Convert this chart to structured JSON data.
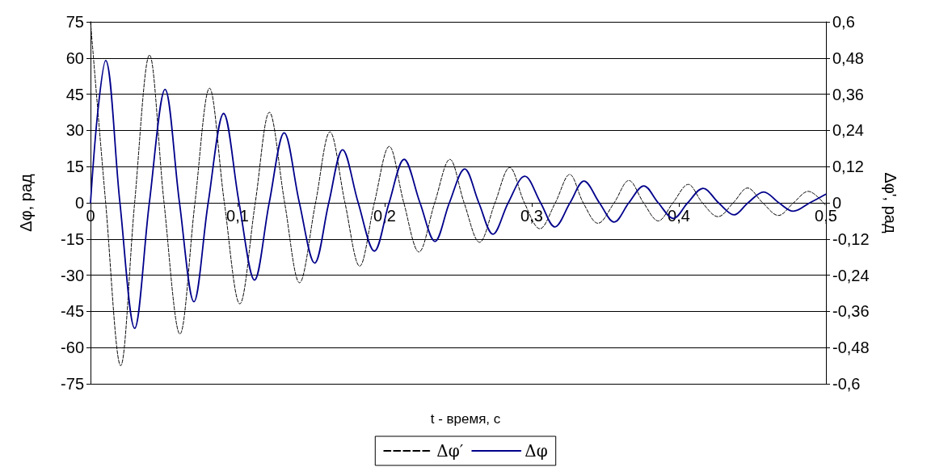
{
  "chart_data": {
    "type": "line",
    "xlabel": "t - время, с",
    "ylabel": "Δφ, рад",
    "y2label": "Δφ', рад",
    "xlim": [
      0,
      0.5
    ],
    "xticks": [
      0,
      {
        "value": 0.1,
        "label": "0,1"
      },
      {
        "value": 0.2,
        "label": "0,2"
      },
      {
        "value": 0.3,
        "label": "0,3"
      },
      {
        "value": 0.4,
        "label": "0,4"
      },
      {
        "value": 0.5,
        "label": "0,5"
      }
    ],
    "ylim": [
      -75,
      75
    ],
    "yticks": [
      -75,
      -60,
      -45,
      -30,
      -15,
      0,
      15,
      30,
      45,
      60,
      75
    ],
    "y2lim": [
      -0.6,
      0.6
    ],
    "y2ticks": [
      {
        "value": -0.6,
        "label": "-0,6"
      },
      {
        "value": -0.48,
        "label": "-0,48"
      },
      {
        "value": -0.36,
        "label": "-0,36"
      },
      {
        "value": -0.24,
        "label": "-0,24"
      },
      {
        "value": -0.12,
        "label": "-0,12"
      },
      0,
      {
        "value": 0.12,
        "label": "0,12"
      },
      {
        "value": 0.24,
        "label": "0,24"
      },
      {
        "value": 0.36,
        "label": "0,36"
      },
      {
        "value": 0.48,
        "label": "0,48"
      },
      {
        "value": 0.6,
        "label": "0,6"
      }
    ],
    "grid": "y",
    "legend": "bottom",
    "marker": "none",
    "series": [
      {
        "name": "Δφ′",
        "color": "#000000",
        "axis": "y2",
        "line_style": "dashed",
        "x": [
          0,
          0.0103,
          0.0205,
          0.03,
          0.0401,
          0.05,
          0.0608,
          0.071,
          0.0809,
          0.091,
          0.1015,
          0.112,
          0.1216,
          0.132,
          0.1421,
          0.153,
          0.1628,
          0.173,
          0.183,
          0.193,
          0.2031,
          0.213,
          0.2233,
          0.234,
          0.2443,
          0.254,
          0.2645,
          0.275,
          0.285,
          0.295,
          0.3055,
          0.316,
          0.3258,
          0.335,
          0.345,
          0.356,
          0.366,
          0.376,
          0.386,
          0.396,
          0.4064,
          0.416,
          0.4266,
          0.437,
          0.4467,
          0.457,
          0.4677,
          0.478,
          0.488,
          0.5
        ],
        "values": [
          0.6,
          0,
          -0.54,
          0,
          0.49,
          0,
          -0.435,
          0,
          0.38,
          0,
          -0.335,
          0,
          0.3,
          0,
          -0.265,
          0,
          0.235,
          0,
          -0.21,
          0,
          0.187,
          0,
          -0.163,
          0,
          0.144,
          0,
          -0.131,
          0,
          0.117,
          0,
          -0.086,
          0,
          0.094,
          0,
          -0.068,
          0,
          0.074,
          0,
          -0.06,
          0,
          0.061,
          0,
          -0.046,
          0,
          0.049,
          0,
          -0.042,
          0,
          0.038,
          -0.01
        ]
      },
      {
        "name": "Δφ",
        "color": "#00008b",
        "line_style": "solid",
        "x": [
          0,
          0.005,
          0.0103,
          0.02,
          0.03,
          0.04,
          0.0507,
          0.0605,
          0.0703,
          0.08,
          0.0905,
          0.101,
          0.1115,
          0.1215,
          0.1317,
          0.142,
          0.1524,
          0.162,
          0.1714,
          0.182,
          0.193,
          0.203,
          0.2132,
          0.224,
          0.2342,
          0.244,
          0.2544,
          0.264,
          0.2736,
          0.284,
          0.2952,
          0.306,
          0.3157,
          0.326,
          0.3355,
          0.346,
          0.356,
          0.366,
          0.3762,
          0.386,
          0.3963,
          0.406,
          0.4165,
          0.427,
          0.4375,
          0.447,
          0.4577,
          0.468,
          0.4778,
          0.489,
          0.4998
        ],
        "values": [
          0,
          38,
          59,
          0,
          -52,
          0,
          47,
          0,
          -41,
          0,
          37,
          0,
          -32,
          0,
          29,
          0,
          -25,
          0,
          22,
          0,
          -20,
          0,
          18,
          0,
          -16,
          0,
          14,
          0,
          -13,
          0,
          11,
          0,
          -10,
          0,
          9,
          0,
          -8,
          0,
          7,
          0,
          -6.5,
          0,
          6,
          0,
          -5,
          0,
          4.5,
          0,
          -3.5,
          0,
          3.5
        ]
      }
    ]
  }
}
